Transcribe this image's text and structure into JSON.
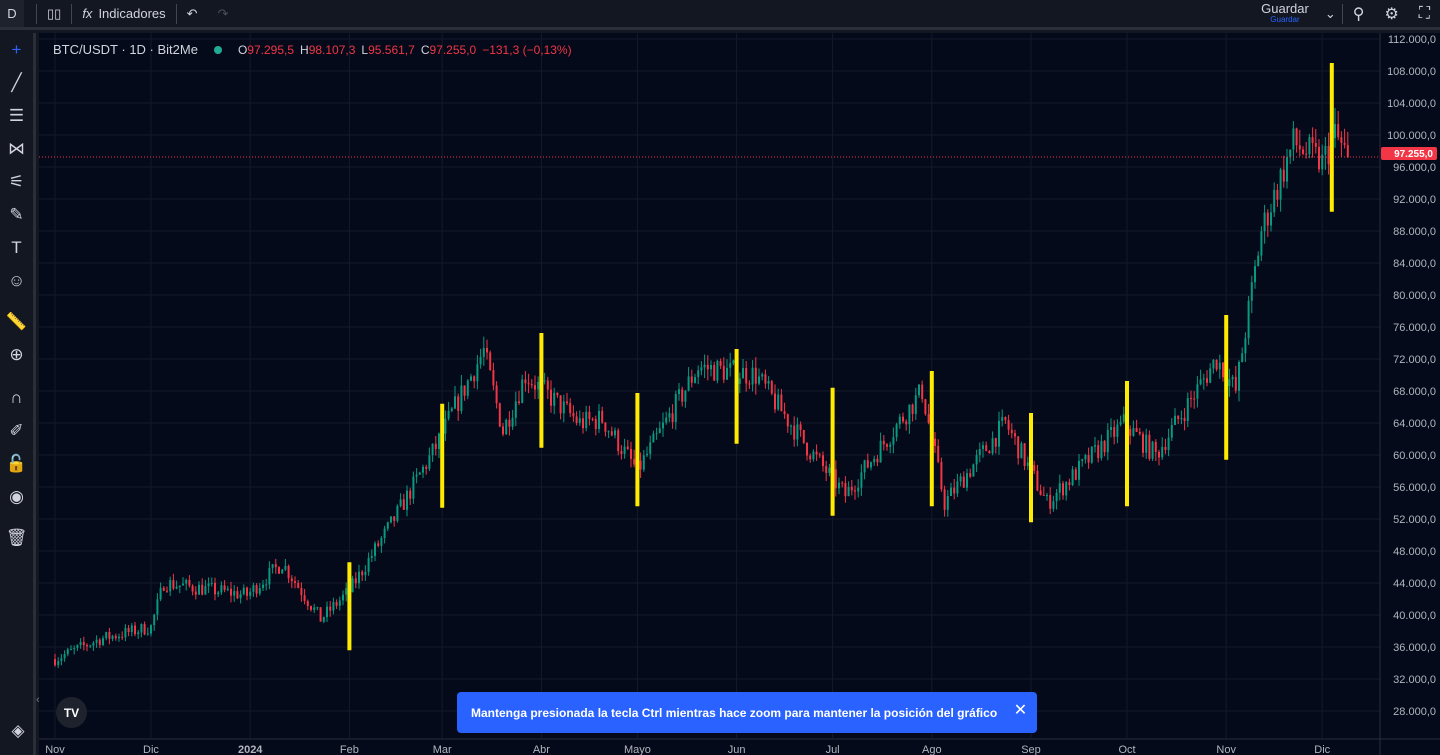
{
  "topbar": {
    "interval": "D",
    "indicators": "Indicadores",
    "save": "Guardar",
    "save_sub": "Guardar"
  },
  "legend": {
    "symbol": "BTC/USDT · 1D · Bit2Me",
    "o_label": "O",
    "o": "97.295,5",
    "h_label": "H",
    "h": "98.107,3",
    "l_label": "L",
    "l": "95.561,7",
    "c_label": "C",
    "c": "97.255,0",
    "change": "−131,3 (−0,13%)"
  },
  "toast": {
    "text": "Mantenga presionada la tecla Ctrl mientras hace zoom para mantener la posición del gráfico",
    "close": "✕"
  },
  "logo": "TV",
  "colors": {
    "up": "#089981",
    "down": "#f23645",
    "marker": "#ffeb00",
    "toast": "#2962ff"
  },
  "chart_data": {
    "type": "candlestick",
    "y_ticks": [
      "112.000,0",
      "108.000,0",
      "104.000,0",
      "100.000,0",
      "96.000,0",
      "92.000,0",
      "88.000,0",
      "84.000,0",
      "80.000,0",
      "76.000,0",
      "72.000,0",
      "68.000,0",
      "64.000,0",
      "60.000,0",
      "56.000,0",
      "52.000,0",
      "48.000,0",
      "44.000,0",
      "40.000,0",
      "36.000,0",
      "32.000,0",
      "28.000,0"
    ],
    "ylim": [
      28000,
      112000
    ],
    "x_ticks": [
      [
        "Nov",
        "2023-11-01"
      ],
      [
        "Dic",
        "2023-12-01"
      ],
      [
        "2024",
        "2024-01-01"
      ],
      [
        "Feb",
        "2024-02-01"
      ],
      [
        "Mar",
        "2024-03-01"
      ],
      [
        "Abr",
        "2024-04-01"
      ],
      [
        "Mayo",
        "2024-05-01"
      ],
      [
        "Jun",
        "2024-06-01"
      ],
      [
        "Jul",
        "2024-07-01"
      ],
      [
        "Ago",
        "2024-08-01"
      ],
      [
        "Sep",
        "2024-09-01"
      ],
      [
        "Oct",
        "2024-10-01"
      ],
      [
        "Nov",
        "2024-11-01"
      ],
      [
        "Dic",
        "2024-12-01"
      ]
    ],
    "last_price": "97.255,0",
    "close_path": [
      [
        "2023-11-01",
        34500
      ],
      [
        "2023-11-15",
        37000
      ],
      [
        "2023-12-01",
        38500
      ],
      [
        "2023-12-05",
        44000
      ],
      [
        "2023-12-31",
        42500
      ],
      [
        "2024-01-11",
        46500
      ],
      [
        "2024-01-23",
        39500
      ],
      [
        "2024-02-01",
        43000
      ],
      [
        "2024-02-15",
        52000
      ],
      [
        "2024-02-28",
        61000
      ],
      [
        "2024-03-05",
        66000
      ],
      [
        "2024-03-14",
        73000
      ],
      [
        "2024-03-20",
        63000
      ],
      [
        "2024-03-27",
        70000
      ],
      [
        "2024-04-13",
        64000
      ],
      [
        "2024-04-20",
        64500
      ],
      [
        "2024-05-01",
        58000
      ],
      [
        "2024-05-20",
        71000
      ],
      [
        "2024-06-07",
        70000
      ],
      [
        "2024-06-24",
        60500
      ],
      [
        "2024-07-05",
        55000
      ],
      [
        "2024-07-29",
        68000
      ],
      [
        "2024-08-05",
        54000
      ],
      [
        "2024-08-24",
        64000
      ],
      [
        "2024-09-06",
        54000
      ],
      [
        "2024-09-30",
        64000
      ],
      [
        "2024-10-10",
        60000
      ],
      [
        "2024-10-29",
        72000
      ],
      [
        "2024-11-04",
        68000
      ],
      [
        "2024-11-12",
        88000
      ],
      [
        "2024-11-22",
        99000
      ],
      [
        "2024-12-01",
        96500
      ],
      [
        "2024-12-05",
        100000
      ],
      [
        "2024-12-09",
        97255
      ]
    ],
    "markers": [
      [
        "2024-02-01",
        35600,
        46600
      ],
      [
        "2024-03-01",
        53400,
        66400
      ],
      [
        "2024-04-01",
        60900,
        75250
      ],
      [
        "2024-05-01",
        53600,
        67750
      ],
      [
        "2024-06-01",
        61400,
        73250
      ],
      [
        "2024-07-01",
        52400,
        68400
      ],
      [
        "2024-08-01",
        53600,
        70500
      ],
      [
        "2024-09-01",
        51600,
        65250
      ],
      [
        "2024-10-01",
        53600,
        69250
      ],
      [
        "2024-11-01",
        59400,
        77500
      ],
      [
        "2024-12-04",
        90400,
        109000
      ]
    ]
  }
}
